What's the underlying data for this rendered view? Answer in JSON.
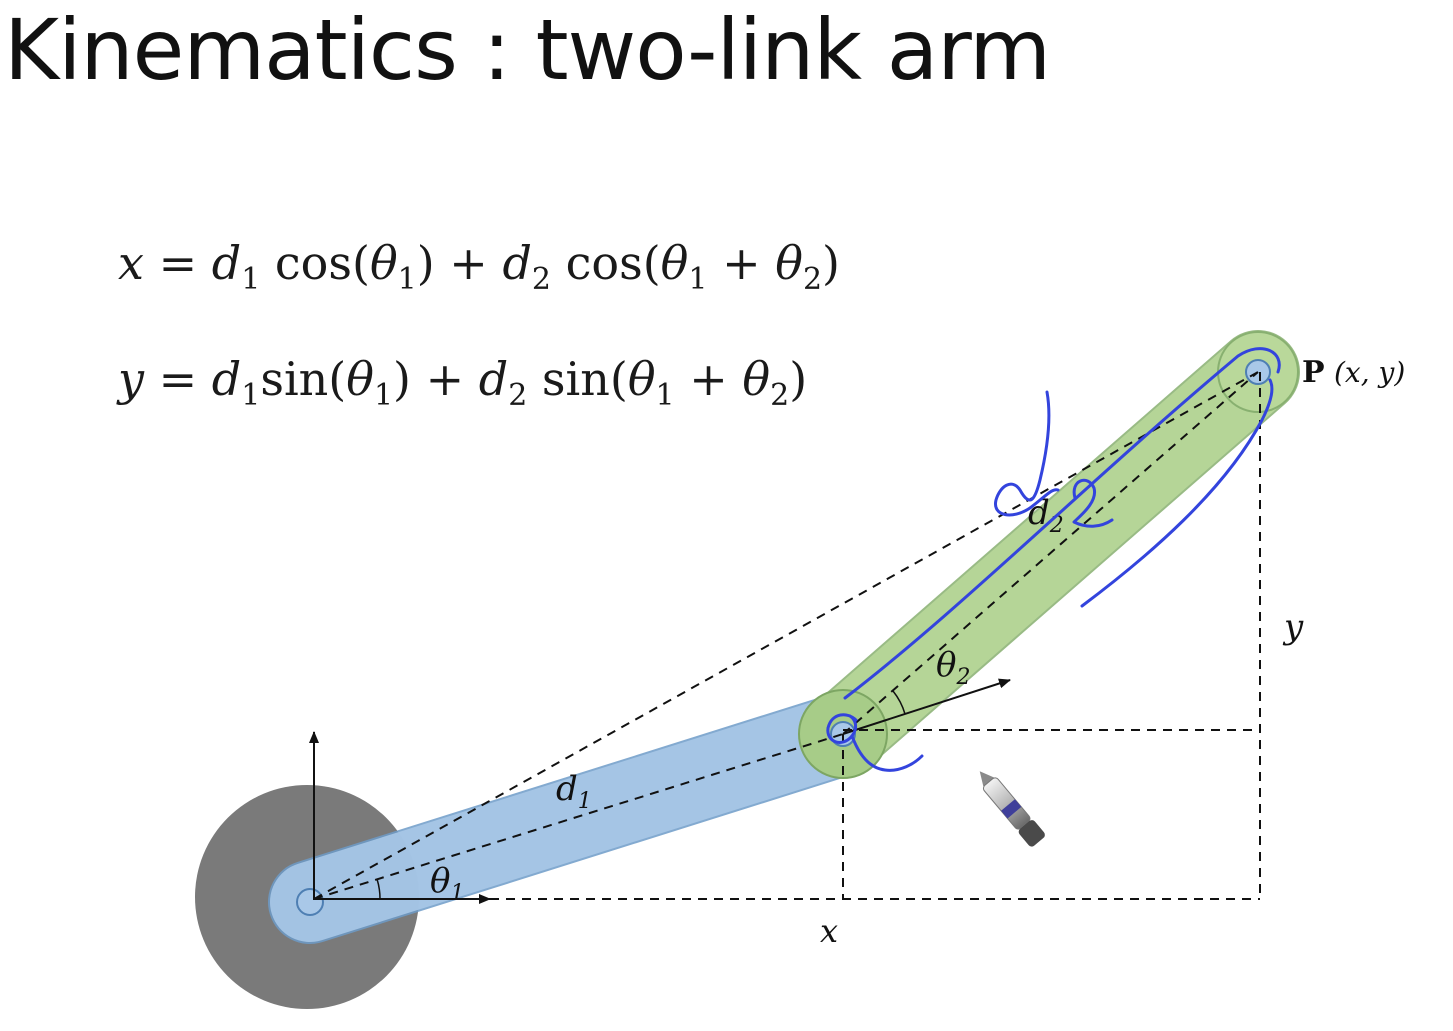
{
  "title": "Kinematics : two-link arm",
  "equations": {
    "x": {
      "lhs": "x",
      "eq": " = ",
      "d1": "d",
      "d1_sub": "1",
      "cos1": " cos(",
      "th1": "θ",
      "th1_sub": "1",
      "close1": ") + ",
      "d2": "d",
      "d2_sub": "2",
      "cos2": " cos(",
      "th1b": "θ",
      "th1b_sub": "1",
      "plus": " + ",
      "th2": "θ",
      "th2_sub": "2",
      "close2": ")"
    },
    "y": {
      "lhs": "y",
      "eq": " = ",
      "d1": "d",
      "d1_sub": "1",
      "sin1": "sin(",
      "th1": "θ",
      "th1_sub": "1",
      "close1": ") + ",
      "d2": "d",
      "d2_sub": "2",
      "sin2": " sin(",
      "th1b": "θ",
      "th1b_sub": "1",
      "plus": " + ",
      "th2": "θ",
      "th2_sub": "2",
      "close2": ")"
    }
  },
  "diagram": {
    "labels": {
      "d1": "d",
      "d1_sub": "1",
      "d2": "d",
      "d2_sub": "2",
      "theta1": "θ",
      "theta1_sub": "1",
      "theta2": "θ",
      "theta2_sub": "2",
      "x": "x",
      "y": "y",
      "point": "P",
      "point_coords": "(x, y)"
    },
    "colors": {
      "base": "#7a7a7a",
      "link1_fill": "#a9c8e8",
      "link1_stroke": "#6e9cc8",
      "link2_fill": "#b9d89a",
      "link2_stroke": "#88b070",
      "ink": "#3344dd"
    },
    "icons": [
      "pen-cursor-icon"
    ]
  }
}
